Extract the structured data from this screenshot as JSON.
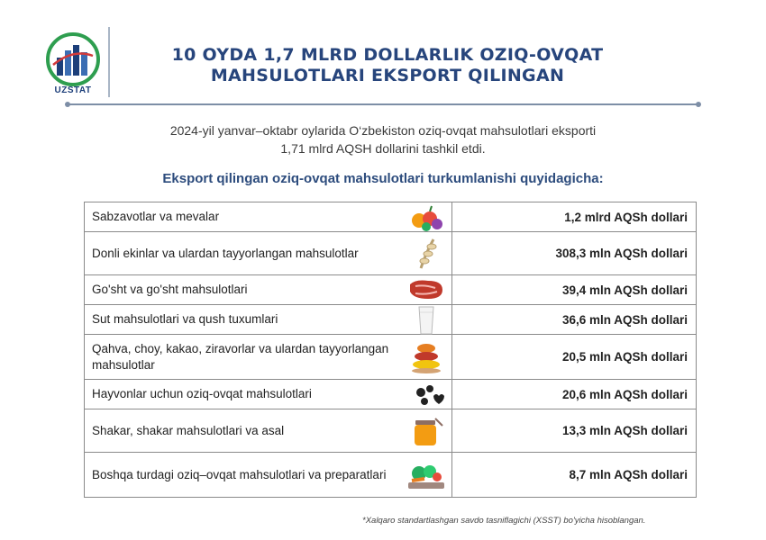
{
  "header": {
    "logo_text": "UZSTAT",
    "title_line1": "10 OYDA 1,7 MLRD DOLLARLIK OZIQ-OVQAT",
    "title_line2": "MAHSULOTLARI EKSPORT QILINGAN"
  },
  "intro": {
    "line1": "2024-yil yanvar–oktabr oylarida O‘zbekiston oziq-ovqat mahsulotlari eksporti",
    "line2": "1,71 mlrd AQSH dollarini tashkil etdi."
  },
  "subtitle": "Eksport qilingan oziq-ovqat mahsulotlari turkumlanishi quyidagicha:",
  "categories": [
    {
      "label": "Sabzavotlar va mevalar",
      "value": "1,2 mlrd AQSh dollari",
      "icon": "fruits-icon"
    },
    {
      "label": "Donli ekinlar va ulardan tayyorlangan mahsulotlar",
      "value": "308,3 mln AQSh dollari",
      "icon": "wheat-icon"
    },
    {
      "label": "Go'sht va go'sht mahsulotlari",
      "value": "39,4 mln AQSh dollari",
      "icon": "meat-icon"
    },
    {
      "label": "Sut mahsulotlari va qush tuxumlari",
      "value": "36,6 mln AQSh dollari",
      "icon": "milk-icon"
    },
    {
      "label": "Qahva, choy, kakao, ziravorlar va ulardan tayyorlangan mahsulotlar",
      "value": "20,5 mln AQSh dollari",
      "icon": "spices-icon"
    },
    {
      "label": "Hayvonlar uchun oziq-ovqat mahsulotlari",
      "value": "20,6 mln AQSh dollari",
      "icon": "pet-food-icon"
    },
    {
      "label": "Shakar, shakar mahsulotlari va asal",
      "value": "13,3 mln AQSh dollari",
      "icon": "honey-icon"
    },
    {
      "label": "Boshqa turdagi oziq–ovqat mahsulotlari va preparatlari",
      "value": "8,7 mln AQSh dollari",
      "icon": "vegetables-icon"
    }
  ],
  "footnote": "*Xalqaro standartlashgan savdo tasniflagichi (XSST) bo'yicha hisoblangan.",
  "colors": {
    "title": "#27457c",
    "subtitle": "#2d4c7d",
    "logo_green": "#2e9e4f",
    "logo_blue": "#1d3f7a"
  }
}
